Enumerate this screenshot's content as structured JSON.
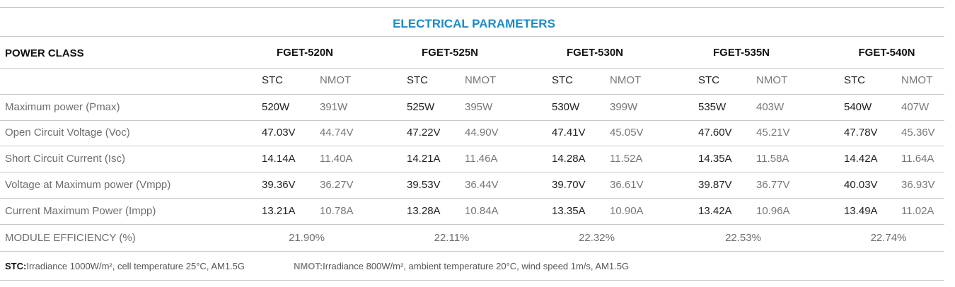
{
  "title": "ELECTRICAL PARAMETERS",
  "table": {
    "header": {
      "label": "POWER CLASS",
      "models": [
        "FGET-520N",
        "FGET-525N",
        "FGET-530N",
        "FGET-535N",
        "FGET-540N"
      ]
    },
    "conditions": [
      [
        "STC",
        "NMOT"
      ],
      [
        "STC",
        "NMOT"
      ],
      [
        "STC",
        "NMOT"
      ],
      [
        "STC",
        "NMOT"
      ],
      [
        "STC",
        "NMOT"
      ]
    ],
    "rows": [
      {
        "label": "Maximum power (Pmax)",
        "values": [
          [
            "520W",
            "391W"
          ],
          [
            "525W",
            "395W"
          ],
          [
            "530W",
            "399W"
          ],
          [
            "535W",
            "403W"
          ],
          [
            "540W",
            "407W"
          ]
        ]
      },
      {
        "label": "Open Circuit Voltage (Voc)",
        "values": [
          [
            "47.03V",
            "44.74V"
          ],
          [
            "47.22V",
            "44.90V"
          ],
          [
            "47.41V",
            "45.05V"
          ],
          [
            "47.60V",
            "45.21V"
          ],
          [
            "47.78V",
            "45.36V"
          ]
        ]
      },
      {
        "label": "Short Circuit Current (Isc)",
        "values": [
          [
            "14.14A",
            "11.40A"
          ],
          [
            "14.21A",
            "11.46A"
          ],
          [
            "14.28A",
            "11.52A"
          ],
          [
            "14.35A",
            "11.58A"
          ],
          [
            "14.42A",
            "11.64A"
          ]
        ]
      },
      {
        "label": "Voltage at Maximum power (Vmpp)",
        "values": [
          [
            "39.36V",
            "36.27V"
          ],
          [
            "39.53V",
            "36.44V"
          ],
          [
            "39.70V",
            "36.61V"
          ],
          [
            "39.87V",
            "36.77V"
          ],
          [
            "40.03V",
            "36.93V"
          ]
        ]
      },
      {
        "label": "Current Maximum Power (Impp)",
        "values": [
          [
            "13.21A",
            "10.78A"
          ],
          [
            "13.28A",
            "10.84A"
          ],
          [
            "13.35A",
            "10.90A"
          ],
          [
            "13.42A",
            "10.96A"
          ],
          [
            "13.49A",
            "11.02A"
          ]
        ]
      }
    ],
    "efficiency": {
      "label": "MODULE EFFICIENCY (%)",
      "values": [
        "21.90%",
        "22.11%",
        "22.32%",
        "22.53%",
        "22.74%"
      ]
    }
  },
  "footnotes": [
    {
      "term": "STC:",
      "text": "Irradiance 1000W/m², cell temperature 25°C, AM1.5G"
    },
    {
      "term": "NMOT:",
      "text": "Irradiance 800W/m², ambient temperature 20°C, wind speed 1m/s, AM1.5G"
    }
  ]
}
